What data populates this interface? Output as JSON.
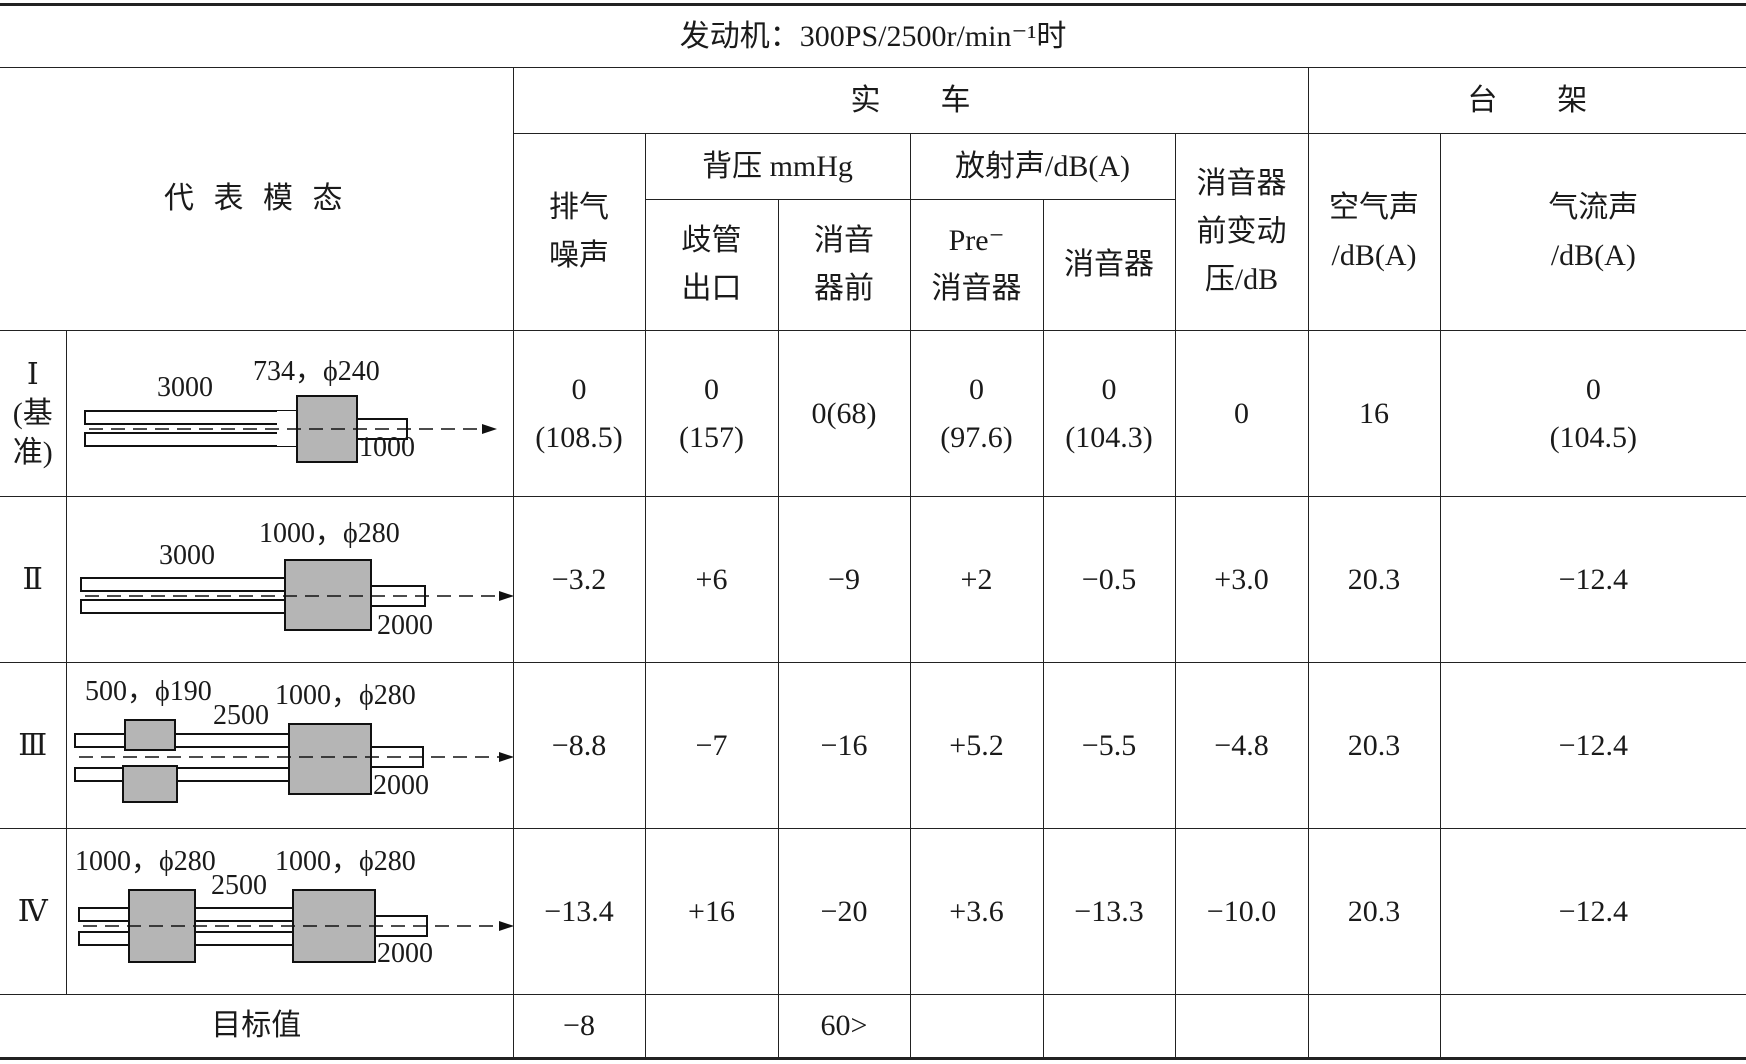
{
  "title": "发动机：300PS/2500r/min⁻¹时",
  "header": {
    "mode": "代 表 模 态",
    "real_vehicle": "实　　车",
    "bench": "台　　架",
    "exhaust_noise": [
      "排气",
      "噪声"
    ],
    "back_pressure": "背压 mmHg",
    "manifold_outlet": [
      "歧管",
      "出口"
    ],
    "before_muffler": [
      "消音",
      "器前"
    ],
    "radiated_noise": "放射声/dB(A)",
    "pre_muffler": [
      "Pre⁻",
      "消音器"
    ],
    "muffler": "消音器",
    "front_dynamic": [
      "消音器",
      "前变动",
      "压/dB"
    ],
    "air_noise": [
      "空气声",
      "/dB(A)"
    ],
    "flow_noise": [
      "气流声",
      "/dB(A)"
    ]
  },
  "rows": [
    {
      "label": "Ⅰ\n(基\n准)",
      "diagram": {
        "pipe_length": "3000",
        "muffler": "734，ϕ240",
        "tail_length": "1000"
      },
      "values": [
        "0\n(108.5)",
        "0\n(157)",
        "0(68)",
        "0\n(97.6)",
        "0\n(104.3)",
        "0",
        "16",
        "0\n(104.5)"
      ]
    },
    {
      "label": "Ⅱ",
      "diagram": {
        "pipe_length": "3000",
        "muffler": "1000，ϕ280",
        "tail_length": "2000"
      },
      "values": [
        "−3.2",
        "+6",
        "−9",
        "+2",
        "−0.5",
        "+3.0",
        "20.3",
        "−12.4"
      ]
    },
    {
      "label": "Ⅲ",
      "diagram": {
        "pre_muffler": "500，ϕ190",
        "pipe_length": "2500",
        "muffler": "1000，ϕ280",
        "tail_length": "2000"
      },
      "values": [
        "−8.8",
        "−7",
        "−16",
        "+5.2",
        "−5.5",
        "−4.8",
        "20.3",
        "−12.4"
      ]
    },
    {
      "label": "Ⅳ",
      "diagram": {
        "pre_muffler": "1000，ϕ280",
        "pipe_length": "2500",
        "muffler": "1000，ϕ280",
        "tail_length": "2000"
      },
      "values": [
        "−13.4",
        "+16",
        "−20",
        "+3.6",
        "−13.3",
        "−10.0",
        "20.3",
        "−12.4"
      ]
    }
  ],
  "target": {
    "label": "目标值",
    "values": [
      "−8",
      "",
      "60>",
      "",
      "",
      "",
      "",
      ""
    ]
  }
}
